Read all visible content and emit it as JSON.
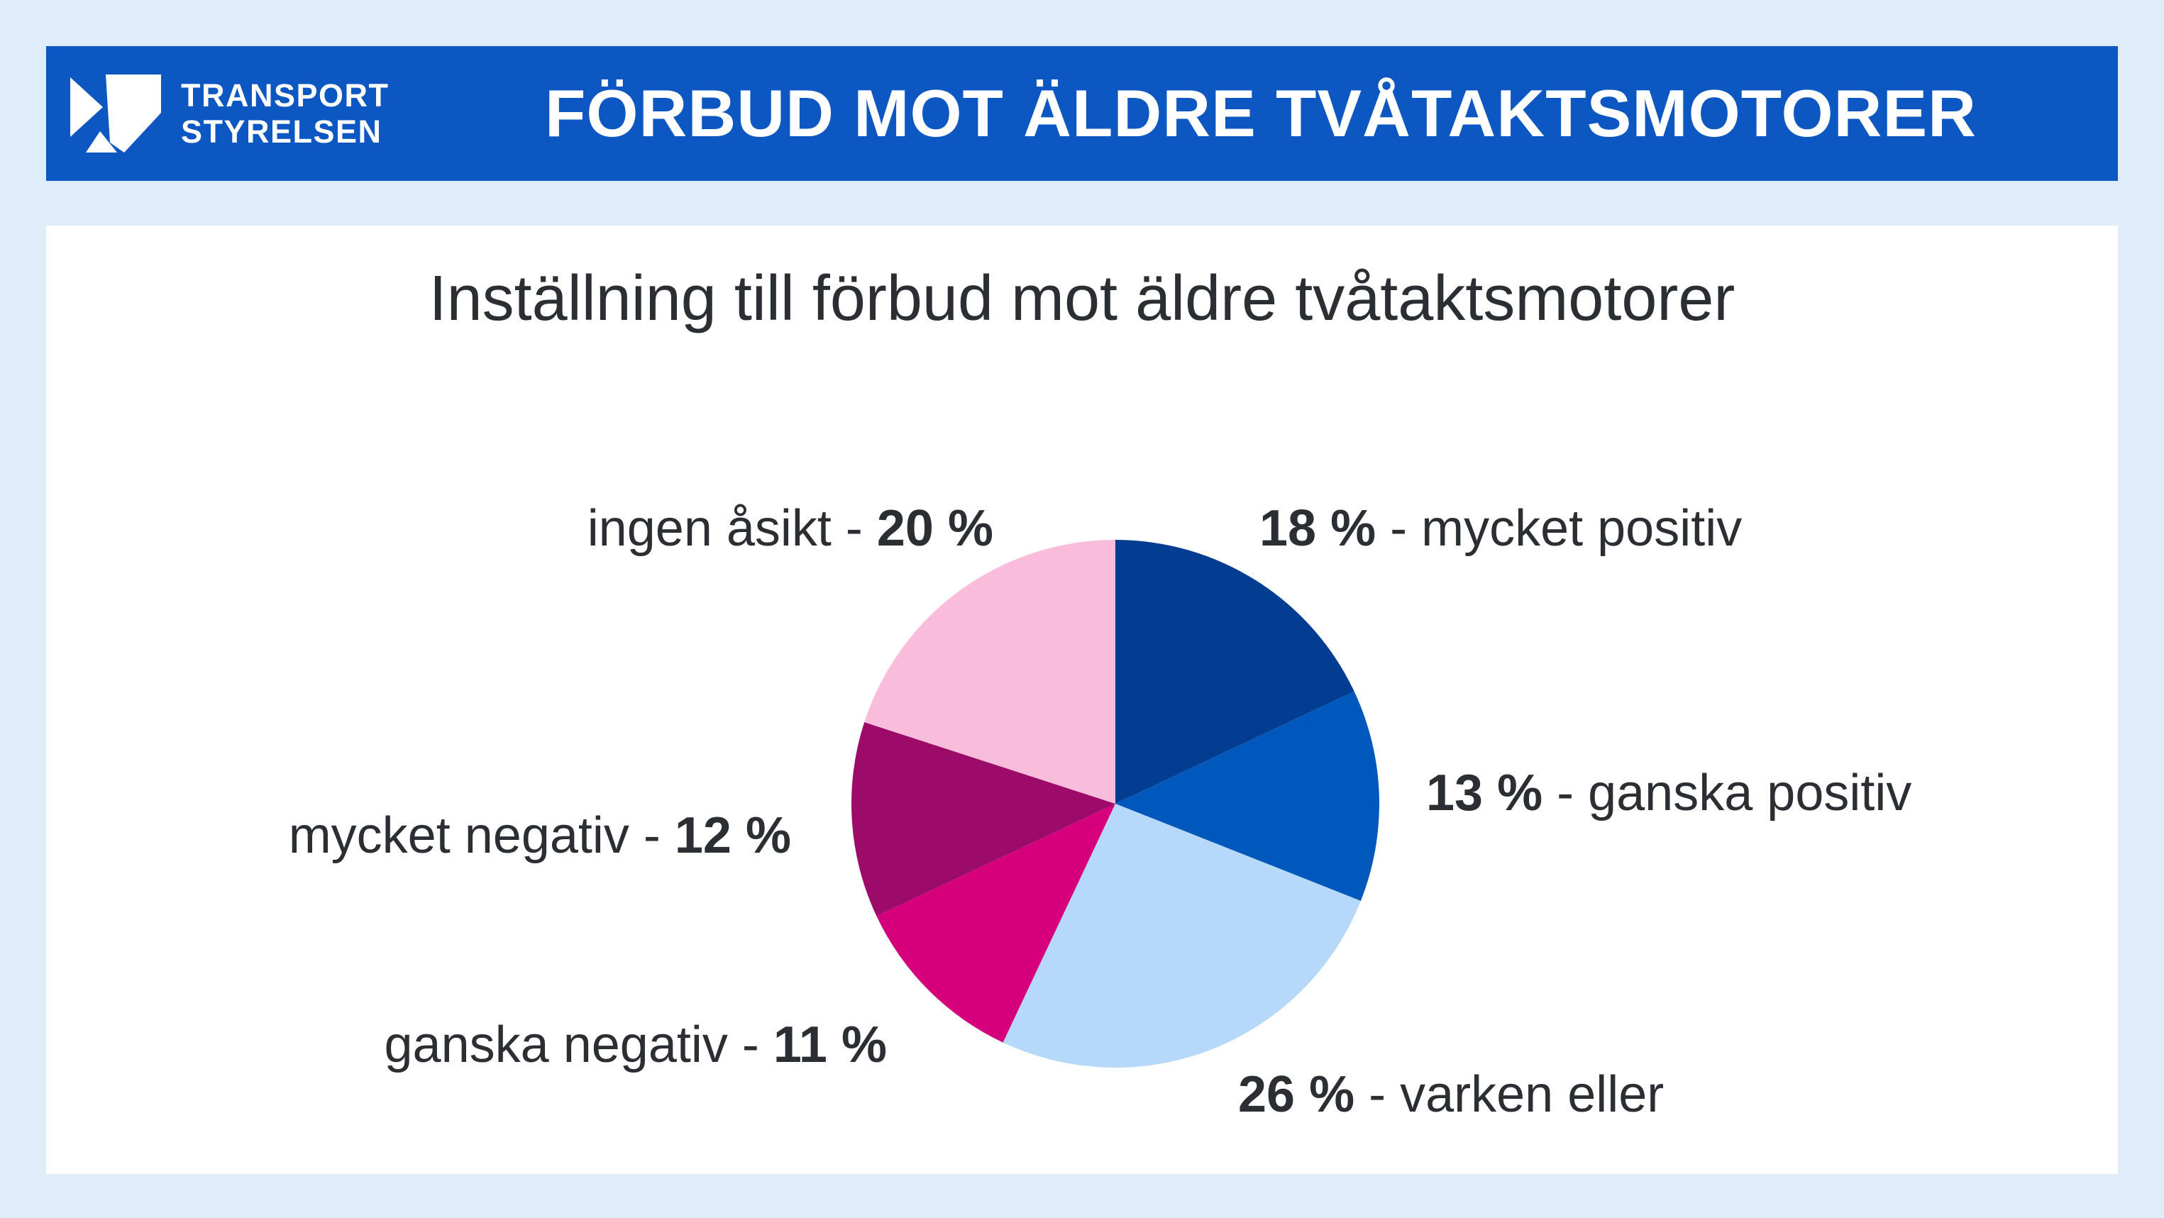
{
  "page": {
    "background": "#dfecfa"
  },
  "header": {
    "background": "#0d57c3",
    "logo": {
      "line1": "TRANSPORT",
      "line2": "STYRELSEN"
    },
    "title": "FÖRBUD MOT ÄLDRE TVÅTAKTSMOTORER"
  },
  "card": {
    "title": "Inställning till förbud mot äldre tvåtaktsmotorer"
  },
  "chart_data": {
    "type": "pie",
    "title": "Inställning till förbud mot äldre tvåtaktsmotorer",
    "start_angle_deg": 0,
    "direction": "clockwise",
    "legend_position": "callout-labels",
    "slices": [
      {
        "label": "mycket positiv",
        "value_pct": 18,
        "color": "#023d91"
      },
      {
        "label": "ganska positiv",
        "value_pct": 13,
        "color": "#0058bd"
      },
      {
        "label": "varken eller",
        "value_pct": 26,
        "color": "#b6d9fa"
      },
      {
        "label": "ganska negativ",
        "value_pct": 11,
        "color": "#d6007d"
      },
      {
        "label": "mycket negativ",
        "value_pct": 12,
        "color": "#9c0b68"
      },
      {
        "label": "ingen åsikt",
        "value_pct": 20,
        "color": "#f9bcda"
      }
    ]
  },
  "labels": {
    "ingen_asikt": {
      "text": "ingen åsikt - ",
      "value": "20 %"
    },
    "mycket_positiv": {
      "value": "18 %",
      "text": " - mycket positiv"
    },
    "ganska_positiv": {
      "value": "13 %",
      "text": " - ganska positiv"
    },
    "varken_eller": {
      "value": "26 %",
      "text": " - varken eller"
    },
    "ganska_negativ": {
      "text": "ganska negativ - ",
      "value": "11 %"
    },
    "mycket_negativ": {
      "text": "mycket negativ - ",
      "value": "12 %"
    }
  }
}
